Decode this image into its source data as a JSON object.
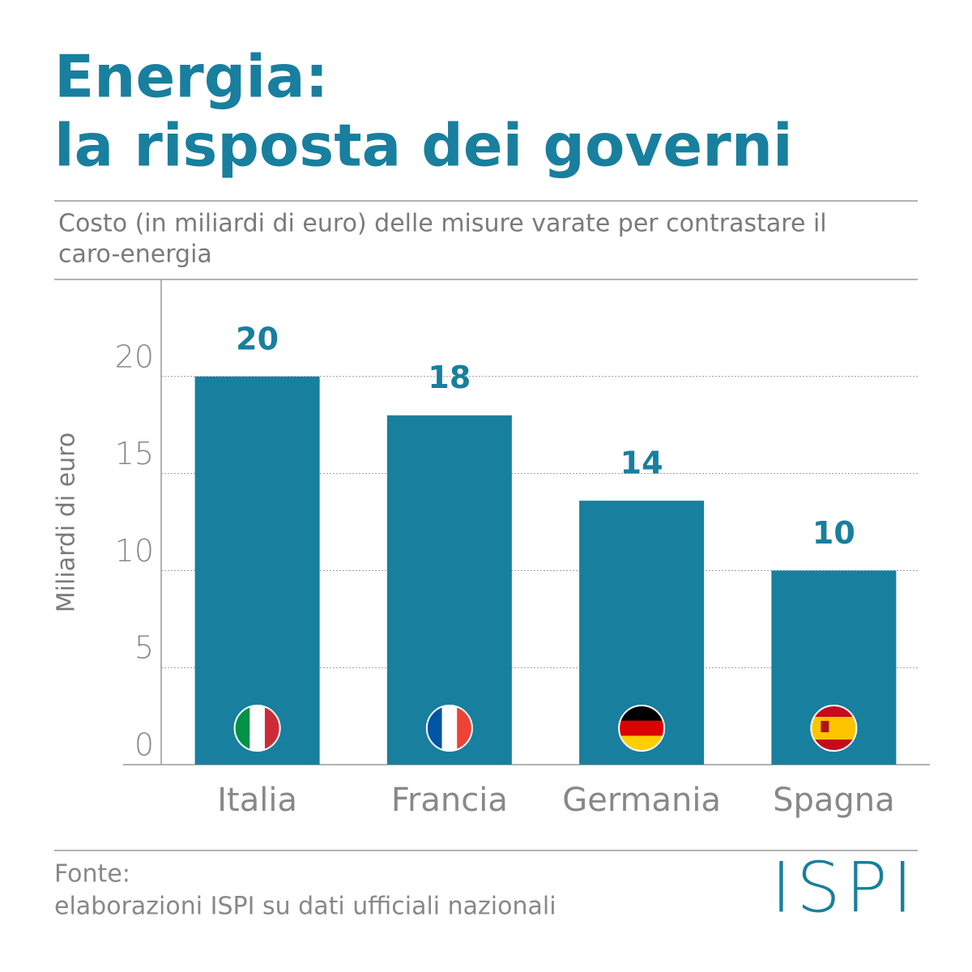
{
  "chart_data": {
    "type": "bar",
    "title": [
      "Energia:",
      "la risposta dei governi"
    ],
    "subtitle": [
      "Costo (in miliardi di euro) delle misure varate per contrastare il",
      "caro-energia"
    ],
    "ylabel": "Miliardi di euro",
    "categories": [
      "Italia",
      "Francia",
      "Germania",
      "Spagna"
    ],
    "values": [
      20,
      18,
      13.6,
      10
    ],
    "value_labels": [
      "20",
      "18",
      "14",
      "10"
    ],
    "color": "#187f9e",
    "ylim": [
      0,
      25
    ],
    "yticks": [
      0,
      5,
      10,
      15,
      20
    ],
    "grid": true,
    "source": [
      "Fonte:",
      "elaborazioni ISPI su dati ufficiali nazionali"
    ],
    "logo": "ISPI"
  }
}
